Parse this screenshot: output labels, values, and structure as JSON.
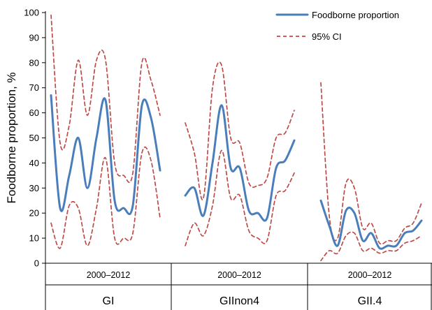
{
  "chart_data": {
    "type": "line",
    "title": "",
    "ylabel": "Foodborne proportion, %",
    "ylim": [
      0,
      100
    ],
    "yticks": [
      0,
      10,
      20,
      30,
      40,
      50,
      60,
      70,
      80,
      90,
      100
    ],
    "grid": false,
    "legend_position": "top-right",
    "colors": {
      "estimate": "#4a7ebb",
      "ci": "#be4b48",
      "axis": "#000000"
    },
    "groups": [
      {
        "name": "GI",
        "period": "2000–2012",
        "series": [
          {
            "name": "Foodborne proportion",
            "values": [
              67,
              22,
              35,
              50,
              30,
              50,
              65,
              25,
              22,
              23,
              63,
              58,
              37
            ]
          },
          {
            "name": "95% CI upper",
            "values": [
              99,
              48,
              55,
              81,
              59,
              81,
              81,
              40,
              35,
              36,
              80,
              73,
              59
            ]
          },
          {
            "name": "95% CI lower",
            "values": [
              16,
              6,
              23,
              22,
              7,
              22,
              42,
              10,
              10,
              12,
              44,
              41,
              18
            ]
          }
        ]
      },
      {
        "name": "GIInon4",
        "period": "2000–2012",
        "series": [
          {
            "name": "Foodborne proportion",
            "values": [
              27,
              30,
              19,
              40,
              63,
              38,
              38,
              21,
              20,
              18,
              38,
              41,
              49
            ]
          },
          {
            "name": "95% CI upper",
            "values": [
              56,
              44,
              26,
              70,
              79,
              50,
              48,
              32,
              31,
              34,
              50,
              52,
              61
            ]
          },
          {
            "name": "95% CI lower",
            "values": [
              7,
              16,
              11,
              23,
              45,
              26,
              27,
              13,
              10,
              9,
              27,
              29,
              36
            ]
          }
        ]
      },
      {
        "name": "GII.4",
        "period": "2000–2012",
        "series": [
          {
            "name": "Foodborne proportion",
            "values": [
              25,
              15,
              7,
              21,
              20,
              9,
              12,
              6,
              7,
              7,
              12,
              13,
              17
            ]
          },
          {
            "name": "95% CI upper",
            "values": [
              72,
              19,
              10,
              32,
              30,
              14,
              16,
              8,
              9,
              9,
              14,
              16,
              24
            ]
          },
          {
            "name": "95% CI lower",
            "values": [
              1,
              5,
              4,
              11,
              12,
              5,
              6,
              4,
              5,
              5,
              8,
              9,
              11
            ]
          }
        ]
      }
    ]
  },
  "legend": {
    "estimate_label": "Foodborne proportion",
    "ci_label": "95% CI"
  }
}
